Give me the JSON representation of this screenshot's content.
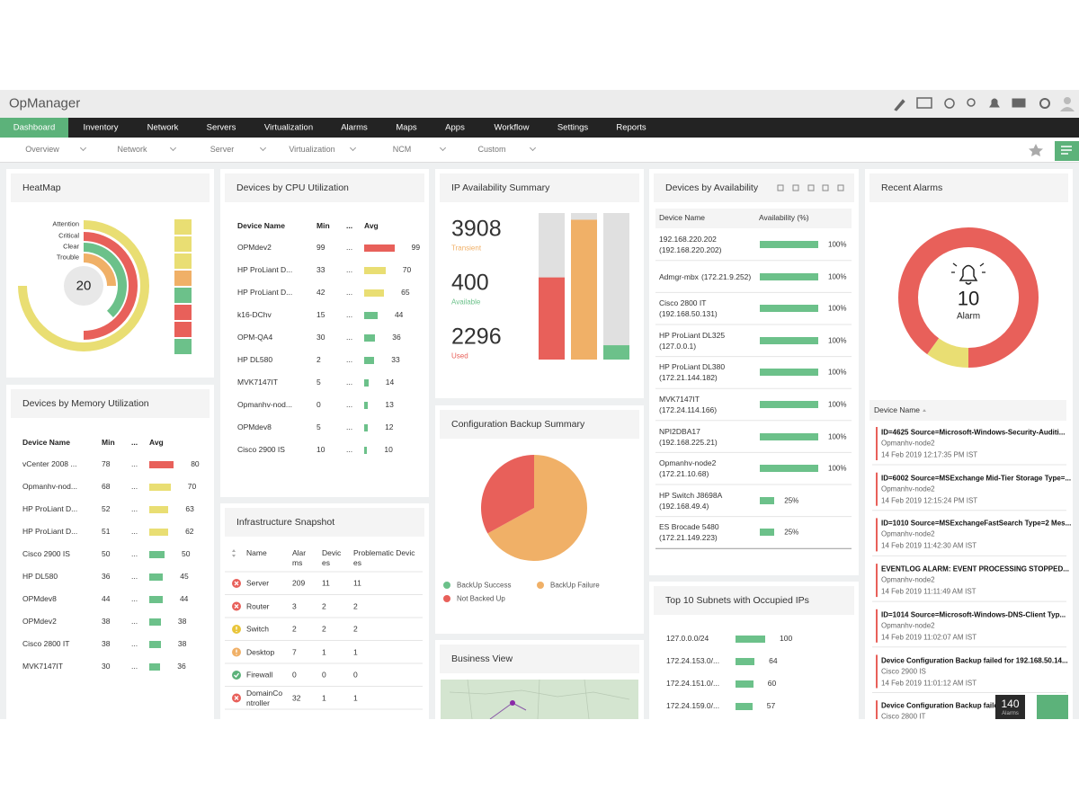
{
  "header": {
    "title": "OpManager"
  },
  "nav": [
    "Dashboard",
    "Inventory",
    "Network",
    "Servers",
    "Virtualization",
    "Alarms",
    "Maps",
    "Apps",
    "Workflow",
    "Settings",
    "Reports"
  ],
  "subnav": [
    "Overview",
    "Network",
    "Server",
    "Virtualization",
    "NCM",
    "Custom"
  ],
  "heatmap": {
    "title": "HeatMap",
    "legend": [
      "Attention",
      "Critical",
      "Clear",
      "Trouble"
    ],
    "total": 20
  },
  "cpu": {
    "title": "Devices by CPU Utilization",
    "columns": [
      "Device Name",
      "Min",
      "...",
      "Avg"
    ],
    "rows": [
      [
        "OPMdev2",
        99,
        "...",
        99
      ],
      [
        "HP ProLiant D...",
        33,
        "...",
        70
      ],
      [
        "HP ProLiant D...",
        42,
        "...",
        65
      ],
      [
        "k16-DChv",
        15,
        "...",
        44
      ],
      [
        "OPM-QA4",
        30,
        "...",
        36
      ],
      [
        "HP DL580",
        2,
        "...",
        33
      ],
      [
        "MVK7147IT",
        5,
        "...",
        14
      ],
      [
        "Opmanhv-nod...",
        0,
        "...",
        13
      ],
      [
        "OPMdev8",
        5,
        "...",
        12
      ],
      [
        "Cisco 2900 IS",
        10,
        "...",
        10
      ]
    ],
    "colors": [
      "#e8605a",
      "#e9de73",
      "#e9de73",
      "#6cc18a",
      "#6cc18a",
      "#6cc18a",
      "#6cc18a",
      "#6cc18a",
      "#6cc18a",
      "#6cc18a"
    ]
  },
  "memory": {
    "title": "Devices by Memory Utilization",
    "columns": [
      "Device Name",
      "Min",
      "...",
      "Avg"
    ],
    "rows": [
      [
        "vCenter 2008 ...",
        78,
        "...",
        80
      ],
      [
        "Opmanhv-nod...",
        68,
        "...",
        70
      ],
      [
        "HP ProLiant D...",
        52,
        "...",
        63
      ],
      [
        "HP ProLiant D...",
        51,
        "...",
        62
      ],
      [
        "Cisco 2900 IS",
        50,
        "...",
        50
      ],
      [
        "HP DL580",
        36,
        "...",
        45
      ],
      [
        "OPMdev8",
        44,
        "...",
        44
      ],
      [
        "OPMdev2",
        38,
        "...",
        38
      ],
      [
        "Cisco 2800 IT",
        38,
        "...",
        38
      ],
      [
        "MVK7147IT",
        30,
        "...",
        36
      ]
    ],
    "colors": [
      "#e8605a",
      "#e9de73",
      "#e9de73",
      "#e9de73",
      "#6cc18a",
      "#6cc18a",
      "#6cc18a",
      "#6cc18a",
      "#6cc18a",
      "#6cc18a"
    ]
  },
  "snapshot": {
    "title": "Infrastructure Snapshot",
    "columns": [
      "Name",
      "Alarms",
      "Devices",
      "Problematic Devices"
    ],
    "rows": [
      [
        "Server",
        209,
        11,
        11
      ],
      [
        "Router",
        3,
        2,
        2
      ],
      [
        "Switch",
        2,
        2,
        2
      ],
      [
        "Desktop",
        7,
        1,
        1
      ],
      [
        "Firewall",
        0,
        0,
        0
      ],
      [
        "DomainController",
        32,
        1,
        1
      ]
    ],
    "status": [
      "critical",
      "critical",
      "attention",
      "trouble",
      "clear",
      "critical"
    ]
  },
  "ip": {
    "title": "IP Availability Summary",
    "ylim": [
      0,
      4096
    ],
    "items": [
      {
        "value": 3908,
        "label": "Transient",
        "color": "#f0b067"
      },
      {
        "value": 400,
        "label": "Available",
        "color": "#6cc18a"
      },
      {
        "value": 2296,
        "label": "Used",
        "color": "#e8605a"
      }
    ]
  },
  "backup": {
    "title": "Configuration Backup Summary",
    "type": "pie",
    "series": [
      {
        "name": "BackUp Success",
        "color": "#6cc18a",
        "value": 0
      },
      {
        "name": "BackUp Failure",
        "color": "#f0b067",
        "value": 67
      },
      {
        "name": "Not Backed Up",
        "color": "#e8605a",
        "value": 33
      }
    ]
  },
  "business": {
    "title": "Business View"
  },
  "availability": {
    "title": "Devices by Availability",
    "columns": [
      "Device Name",
      "Availability (%)"
    ],
    "rows": [
      [
        "192.168.220.202",
        "(192.168.220.202)"
      ],
      [
        "Admgr-mbx",
        "(172.21.9.252)"
      ],
      [
        "Cisco 2800 IT",
        "(192.168.50.131)"
      ],
      [
        "HP ProLiant DL325",
        "(127.0.0.1)"
      ],
      [
        "HP ProLiant DL380",
        "(172.21.144.182)"
      ],
      [
        "MVK7147IT",
        "(172.24.114.166)"
      ],
      [
        "NPI2DBA17",
        "(192.168.225.21)"
      ],
      [
        "Opmanhv-node2",
        "(172.21.10.68)"
      ],
      [
        "HP Switch J8698A",
        "(192.168.49.4)"
      ],
      [
        "ES Brocade 5480",
        "(172.21.149.223)"
      ]
    ],
    "values": [
      100,
      100,
      100,
      100,
      100,
      100,
      100,
      100,
      25,
      25
    ],
    "value_labels": [
      "100%",
      "100%",
      "100%",
      "100%",
      "100%",
      "100%",
      "100%",
      "100%",
      "25%",
      "25%"
    ],
    "color": "#6cc18a"
  },
  "subnets": {
    "title": "Top 10 Subnets with Occupied IPs",
    "categories": [
      "127.0.0.0/24",
      "172.24.153.0/...",
      "172.24.151.0/...",
      "172.24.159.0/..."
    ],
    "values": [
      100,
      64,
      60,
      57
    ],
    "color": "#6cc18a"
  },
  "alarms": {
    "title": "Recent Alarms",
    "total": 10,
    "total_label": "Alarm",
    "donut": {
      "values": [
        1,
        9
      ],
      "colors": [
        "#e9de73",
        "#e8605a"
      ]
    },
    "column": "Device Name",
    "items": [
      {
        "title": "ID=4625 Source=Microsoft-Windows-Security-Auditi...",
        "source": "Opmanhv-node2",
        "time": "14 Feb 2019 12:17:35 PM IST"
      },
      {
        "title": "ID=6002 Source=MSExchange Mid-Tier Storage Type=...",
        "source": "Opmanhv-node2",
        "time": "14 Feb 2019 12:15:24 PM IST"
      },
      {
        "title": "ID=1010 Source=MSExchangeFastSearch Type=2 Mes...",
        "source": "Opmanhv-node2",
        "time": "14 Feb 2019 11:42:30 AM IST"
      },
      {
        "title": "EVENTLOG ALARM: EVENT PROCESSING STOPPED...",
        "source": "Opmanhv-node2",
        "time": "14 Feb 2019 11:11:49 AM IST"
      },
      {
        "title": "ID=1014 Source=Microsoft-Windows-DNS-Client Typ...",
        "source": "Opmanhv-node2",
        "time": "14 Feb 2019 11:02:07 AM IST"
      },
      {
        "title": "Device Configuration Backup failed for 192.168.50.14...",
        "source": "Cisco 2900 IS",
        "time": "14 Feb 2019 11:01:12 AM IST"
      },
      {
        "title": "Device Configuration Backup failed ...",
        "source": "Cisco 2800 IT",
        "time": ""
      }
    ],
    "count": 140,
    "count_label": "Alarms"
  }
}
